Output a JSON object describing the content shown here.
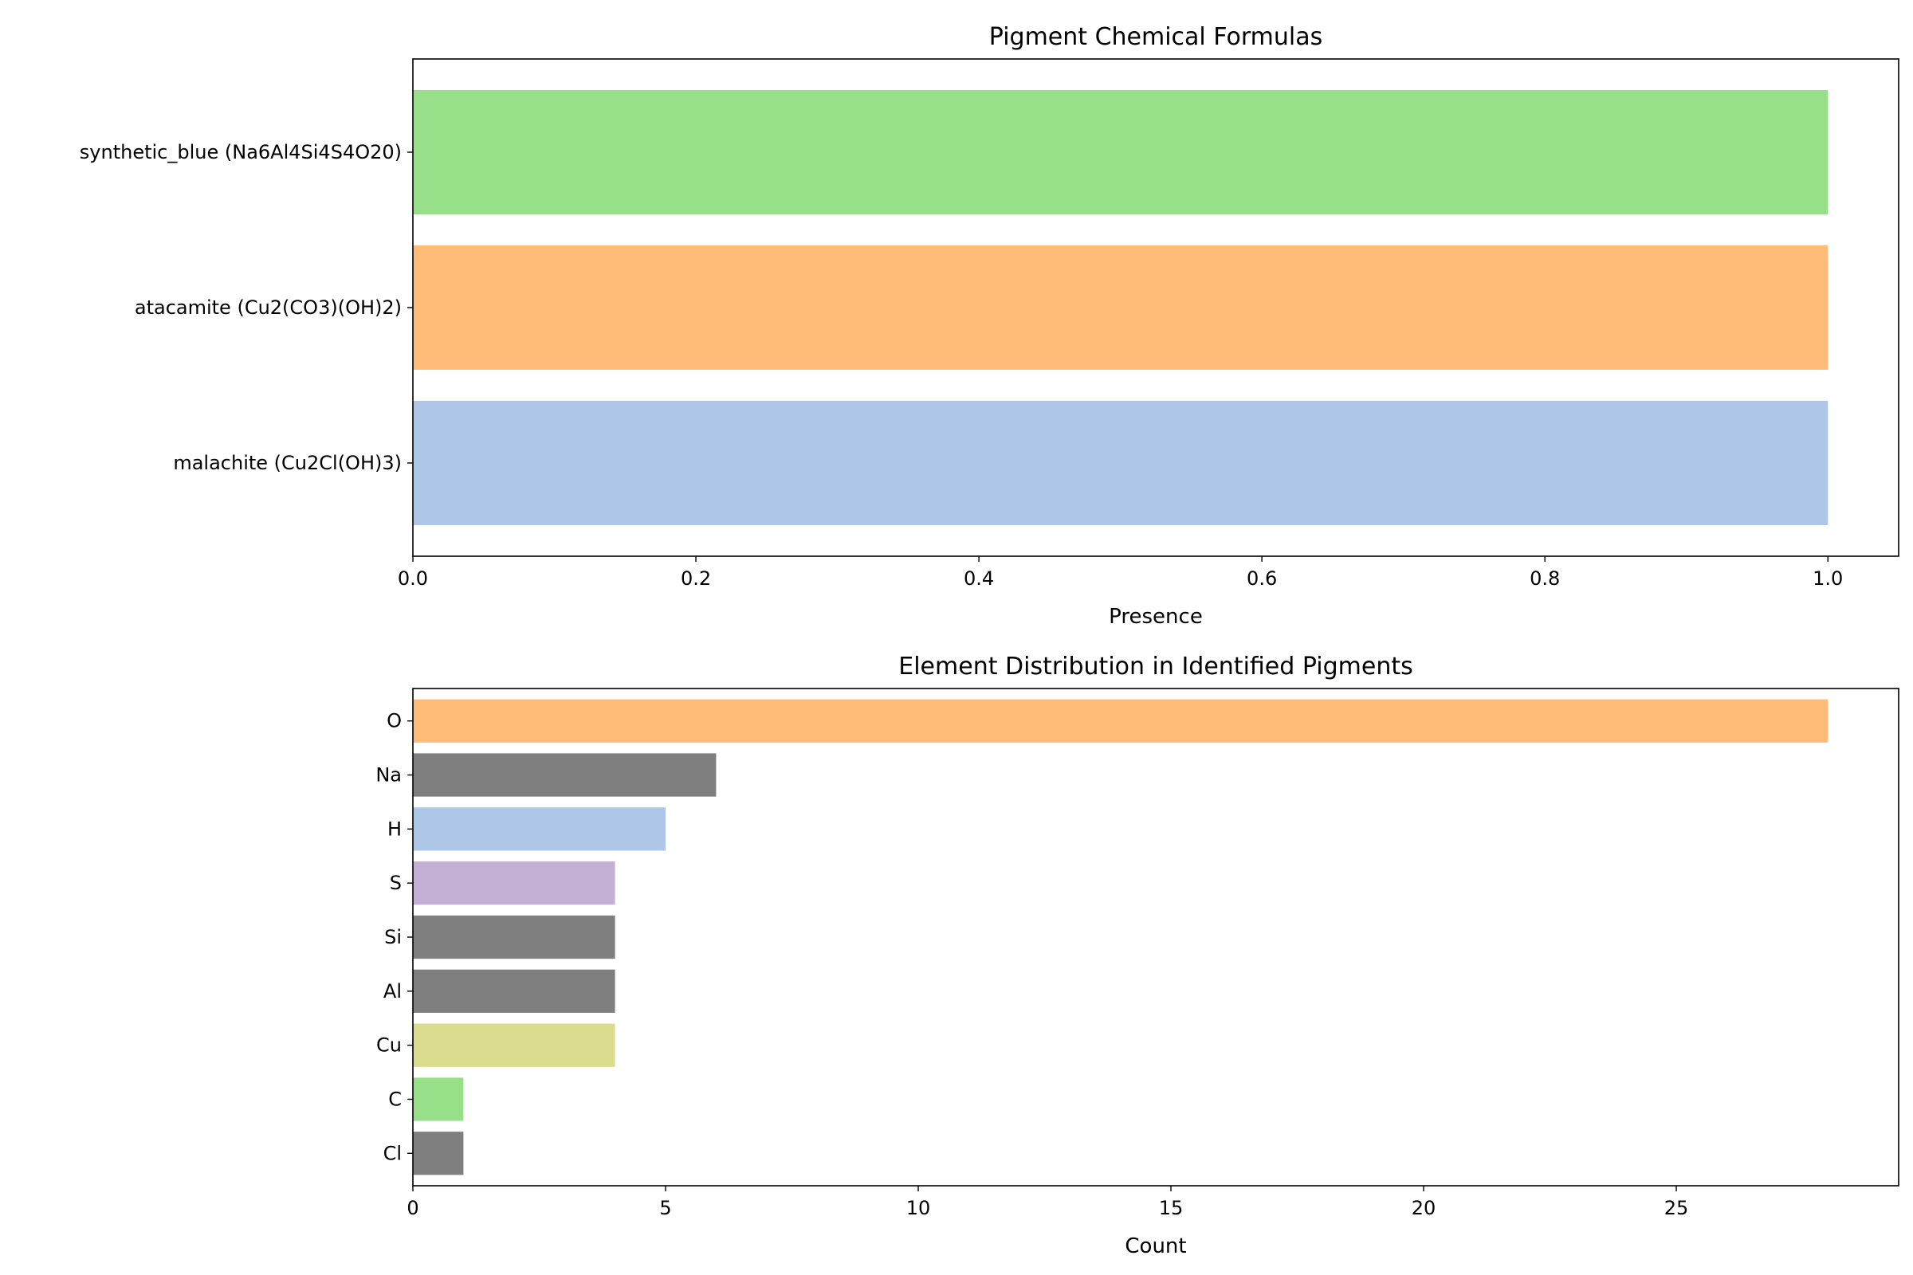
{
  "chart_data": [
    {
      "type": "bar",
      "orientation": "horizontal",
      "title": "Pigment Chemical Formulas",
      "xlabel": "Presence",
      "ylabel": "",
      "categories": [
        "malachite (Cu2Cl(OH)3)",
        "atacamite (Cu2(CO3)(OH)2)",
        "synthetic_blue (Na6Al4Si4S4O20)"
      ],
      "values": [
        1,
        1,
        1
      ],
      "colors": [
        "#aec7e8",
        "#ffbb78",
        "#98df8a"
      ],
      "xlim": [
        0,
        1.05
      ],
      "xticks": [
        0,
        0.2,
        0.4,
        0.6,
        0.8,
        1.0
      ],
      "xtick_labels": [
        "0.0",
        "0.2",
        "0.4",
        "0.6",
        "0.8",
        "1.0"
      ],
      "grid": false,
      "legend": "none"
    },
    {
      "type": "bar",
      "orientation": "horizontal",
      "title": "Element Distribution in Identified Pigments",
      "xlabel": "Count",
      "ylabel": "",
      "categories": [
        "Cl",
        "C",
        "Cu",
        "Al",
        "Si",
        "S",
        "H",
        "Na",
        "O"
      ],
      "values": [
        1,
        1,
        4,
        4,
        4,
        4,
        5,
        6,
        28
      ],
      "colors": [
        "#7f7f7f",
        "#98df8a",
        "#dbdb8d",
        "#7f7f7f",
        "#7f7f7f",
        "#c5b0d5",
        "#aec7e8",
        "#7f7f7f",
        "#ffbb78"
      ],
      "xlim": [
        0,
        29.4
      ],
      "xticks": [
        0,
        5,
        10,
        15,
        20,
        25
      ],
      "xtick_labels": [
        "0",
        "5",
        "10",
        "15",
        "20",
        "25"
      ],
      "grid": false,
      "legend": "none"
    }
  ]
}
